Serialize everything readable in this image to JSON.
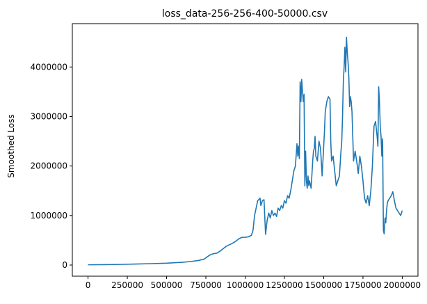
{
  "chart_data": {
    "type": "line",
    "title": "loss_data-256-256-400-50000.csv",
    "xlabel": "",
    "ylabel": "Smoothed Loss",
    "xlim": [
      -100000,
      2100000
    ],
    "ylim": [
      -225000,
      4875000
    ],
    "x_ticks": [
      0,
      250000,
      500000,
      750000,
      1000000,
      1250000,
      1500000,
      1750000,
      2000000
    ],
    "x_tick_labels": [
      "0",
      "250000",
      "500000",
      "750000",
      "1000000",
      "1250000",
      "1500000",
      "1750000",
      "2000000"
    ],
    "y_ticks": [
      0,
      1000000,
      2000000,
      3000000,
      4000000
    ],
    "y_tick_labels": [
      "0",
      "1000000",
      "2000000",
      "3000000",
      "4000000"
    ],
    "grid": false,
    "legend": null,
    "series": [
      {
        "color": "#1f77b4",
        "x": [
          0,
          100000,
          200000,
          300000,
          400000,
          500000,
          600000,
          650000,
          700000,
          740000,
          760000,
          780000,
          800000,
          820000,
          840000,
          860000,
          880000,
          900000,
          920000,
          940000,
          960000,
          980000,
          1000000,
          1020000,
          1040000,
          1050000,
          1060000,
          1080000,
          1095000,
          1100000,
          1110000,
          1120000,
          1130000,
          1140000,
          1150000,
          1160000,
          1170000,
          1180000,
          1190000,
          1200000,
          1210000,
          1220000,
          1230000,
          1240000,
          1250000,
          1260000,
          1270000,
          1280000,
          1290000,
          1300000,
          1310000,
          1320000,
          1330000,
          1335000,
          1340000,
          1345000,
          1350000,
          1355000,
          1360000,
          1365000,
          1370000,
          1375000,
          1380000,
          1385000,
          1390000,
          1395000,
          1400000,
          1405000,
          1410000,
          1420000,
          1430000,
          1435000,
          1440000,
          1445000,
          1450000,
          1460000,
          1470000,
          1480000,
          1490000,
          1500000,
          1505000,
          1510000,
          1520000,
          1530000,
          1540000,
          1545000,
          1550000,
          1560000,
          1570000,
          1580000,
          1590000,
          1600000,
          1610000,
          1615000,
          1620000,
          1625000,
          1630000,
          1635000,
          1640000,
          1645000,
          1650000,
          1655000,
          1660000,
          1665000,
          1670000,
          1675000,
          1680000,
          1690000,
          1700000,
          1710000,
          1720000,
          1730000,
          1740000,
          1750000,
          1760000,
          1770000,
          1780000,
          1790000,
          1800000,
          1810000,
          1820000,
          1830000,
          1840000,
          1845000,
          1850000,
          1855000,
          1860000,
          1865000,
          1870000,
          1875000,
          1880000,
          1885000,
          1890000,
          1895000,
          1900000,
          1905000,
          1910000,
          1920000,
          1930000,
          1940000,
          1950000,
          1960000,
          1970000,
          1980000,
          1990000,
          1995000,
          2000000
        ],
        "values": [
          5000,
          8000,
          12000,
          20000,
          28000,
          38000,
          55000,
          70000,
          90000,
          120000,
          170000,
          210000,
          230000,
          240000,
          280000,
          330000,
          380000,
          410000,
          440000,
          480000,
          530000,
          560000,
          560000,
          570000,
          600000,
          700000,
          1000000,
          1300000,
          1350000,
          1200000,
          1300000,
          1320000,
          620000,
          900000,
          1050000,
          950000,
          1100000,
          1000000,
          1050000,
          980000,
          1150000,
          1100000,
          1200000,
          1150000,
          1300000,
          1250000,
          1400000,
          1350000,
          1500000,
          1700000,
          1900000,
          2000000,
          2450000,
          2200000,
          2400000,
          2150000,
          3700000,
          3300000,
          3750000,
          3500000,
          3300000,
          3450000,
          1600000,
          2300000,
          1700000,
          1550000,
          1800000,
          1600000,
          1700000,
          1550000,
          2100000,
          2300000,
          2350000,
          2600000,
          2200000,
          2100000,
          2500000,
          2350000,
          1800000,
          2400000,
          2700000,
          3100000,
          3300000,
          3400000,
          3350000,
          2500000,
          2100000,
          2200000,
          1900000,
          1600000,
          1700000,
          1800000,
          2300000,
          2500000,
          3000000,
          3700000,
          4000000,
          4400000,
          3900000,
          4600000,
          4300000,
          4100000,
          3800000,
          3200000,
          3400000,
          3300000,
          3100000,
          2100000,
          2300000,
          2100000,
          1850000,
          2200000,
          2000000,
          1700000,
          1350000,
          1250000,
          1400000,
          1200000,
          1500000,
          2000000,
          2800000,
          2900000,
          2600000,
          2400000,
          3600000,
          3300000,
          2800000,
          2600000,
          2200000,
          2550000,
          700000,
          630000,
          950000,
          850000,
          1100000,
          1250000,
          1300000,
          1350000,
          1400000,
          1480000,
          1300000,
          1150000,
          1100000,
          1050000,
          1000000,
          1050000,
          1100000
        ]
      }
    ]
  }
}
